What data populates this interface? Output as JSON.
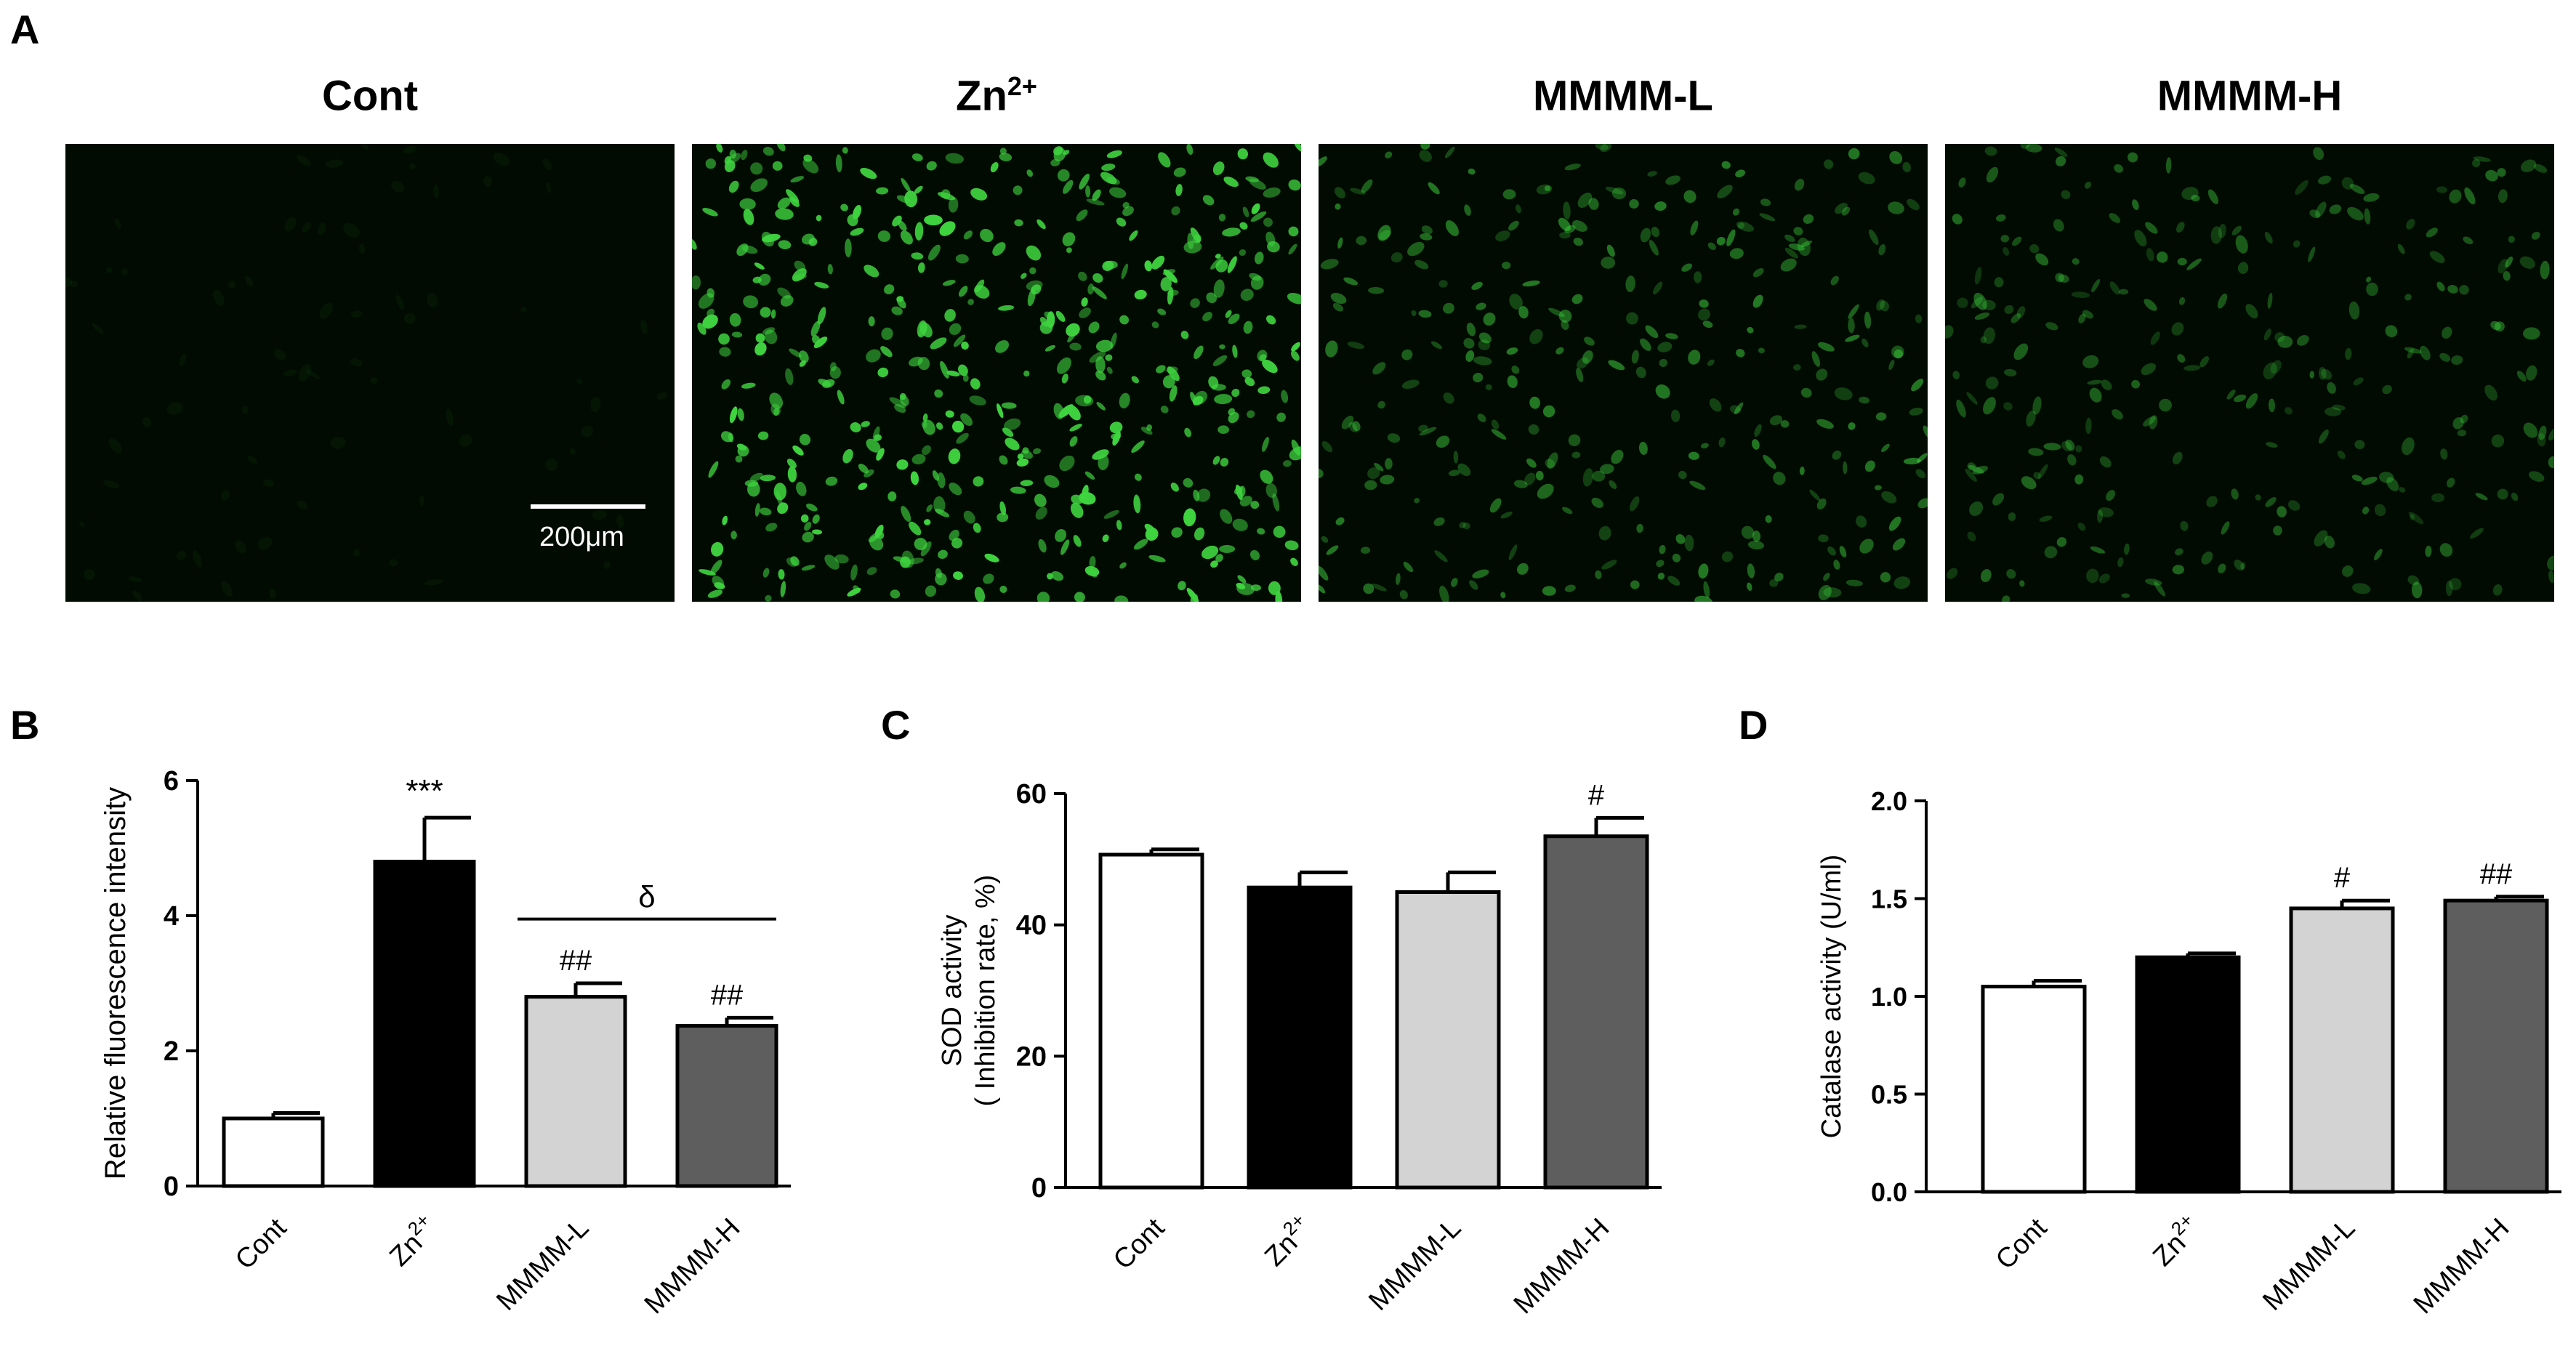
{
  "panels": {
    "A": "A",
    "B": "B",
    "C": "C",
    "D": "D"
  },
  "micrographs": [
    {
      "title": "Cont",
      "superscript": "",
      "intensity": 0.03
    },
    {
      "title": "Zn",
      "superscript": "2+",
      "intensity": 1.0
    },
    {
      "title": "MMMM-L",
      "superscript": "",
      "intensity": 0.55
    },
    {
      "title": "MMMM-H",
      "superscript": "",
      "intensity": 0.45
    }
  ],
  "scale_bar_label": "200μm",
  "colors": {
    "cont": "#ffffff",
    "zn": "#000000",
    "mmmm_l": "#d3d3d3",
    "mmmm_h": "#5e5e5e",
    "fluorescence": "#3fd43f",
    "background": "#020b02"
  },
  "chart_data": [
    {
      "type": "bar",
      "panel": "B",
      "categories": [
        "Cont",
        "Zn2+",
        "MMMM-L",
        "MMMM-H"
      ],
      "values": [
        1.0,
        4.8,
        2.8,
        2.37
      ],
      "errors": [
        0.08,
        0.65,
        0.2,
        0.12
      ],
      "annotations": [
        "",
        "***",
        "##",
        "##"
      ],
      "bracket": {
        "from": 2,
        "to": 3,
        "label": "δ",
        "y": 3.95
      },
      "xlabel": "",
      "ylabel": "Relative fluorescence intensity",
      "ylim": [
        0,
        6
      ],
      "yticks": [
        "0",
        "2",
        "4",
        "6"
      ]
    },
    {
      "type": "bar",
      "panel": "C",
      "categories": [
        "Cont",
        "Zn2+",
        "MMMM-L",
        "MMMM-H"
      ],
      "values": [
        50.7,
        45.7,
        45.0,
        53.5
      ],
      "errors": [
        0.8,
        2.3,
        3.0,
        2.8
      ],
      "annotations": [
        "",
        "",
        "",
        "#"
      ],
      "xlabel": "",
      "ylabel": "SOD activity",
      "ylabel2": "( Inhibition rate, %)",
      "ylim": [
        0,
        60
      ],
      "yticks": [
        "0",
        "20",
        "40",
        "60"
      ]
    },
    {
      "type": "bar",
      "panel": "D",
      "categories": [
        "Cont",
        "Zn2+",
        "MMMM-L",
        "MMMM-H"
      ],
      "values": [
        1.05,
        1.2,
        1.45,
        1.49
      ],
      "errors": [
        0.03,
        0.02,
        0.04,
        0.02
      ],
      "annotations": [
        "",
        "",
        "#",
        "##"
      ],
      "xlabel": "",
      "ylabel": "Catalase activity (U/ml)",
      "ylim": [
        0,
        2.0
      ],
      "yticks": [
        "0.0",
        "0.5",
        "1.0",
        "1.5",
        "2.0"
      ]
    }
  ]
}
